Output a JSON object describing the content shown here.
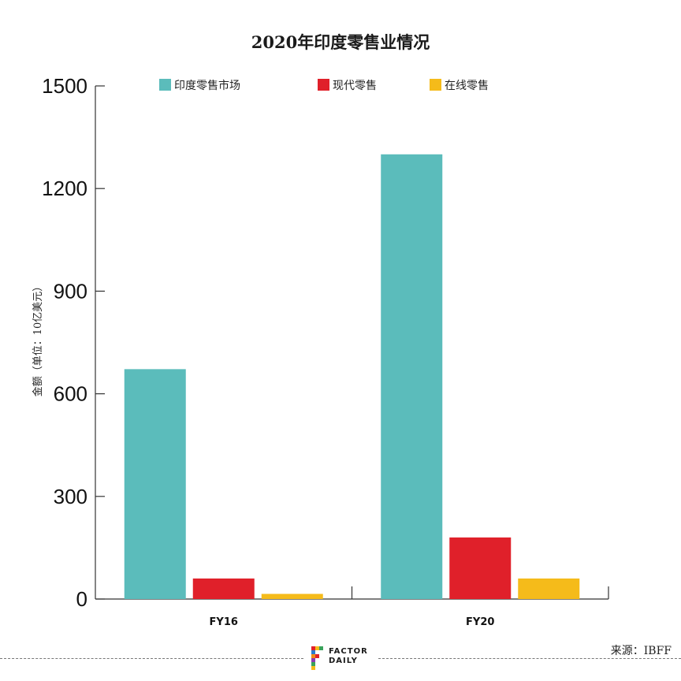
{
  "chart_data": {
    "type": "bar",
    "title": "2020年印度零售业情况",
    "ylabel": "金额（单位：10亿美元）",
    "xlabel": "",
    "categories": [
      "FY16",
      "FY20"
    ],
    "series": [
      {
        "name": "印度零售市场",
        "values": [
          672,
          1300
        ],
        "color": "#5bbcbb"
      },
      {
        "name": "现代零售",
        "values": [
          60,
          180
        ],
        "color": "#e0202a"
      },
      {
        "name": "在线零售",
        "values": [
          15,
          60
        ],
        "color": "#f5bb1a"
      }
    ],
    "ylim": [
      0,
      1500
    ],
    "yticks": [
      0,
      300,
      600,
      900,
      1200,
      1500
    ],
    "grid": false,
    "legend": "top"
  },
  "footer": {
    "source": "来源：IBFF",
    "brand_line1": "FACTOR",
    "brand_line2": "DAILY"
  }
}
